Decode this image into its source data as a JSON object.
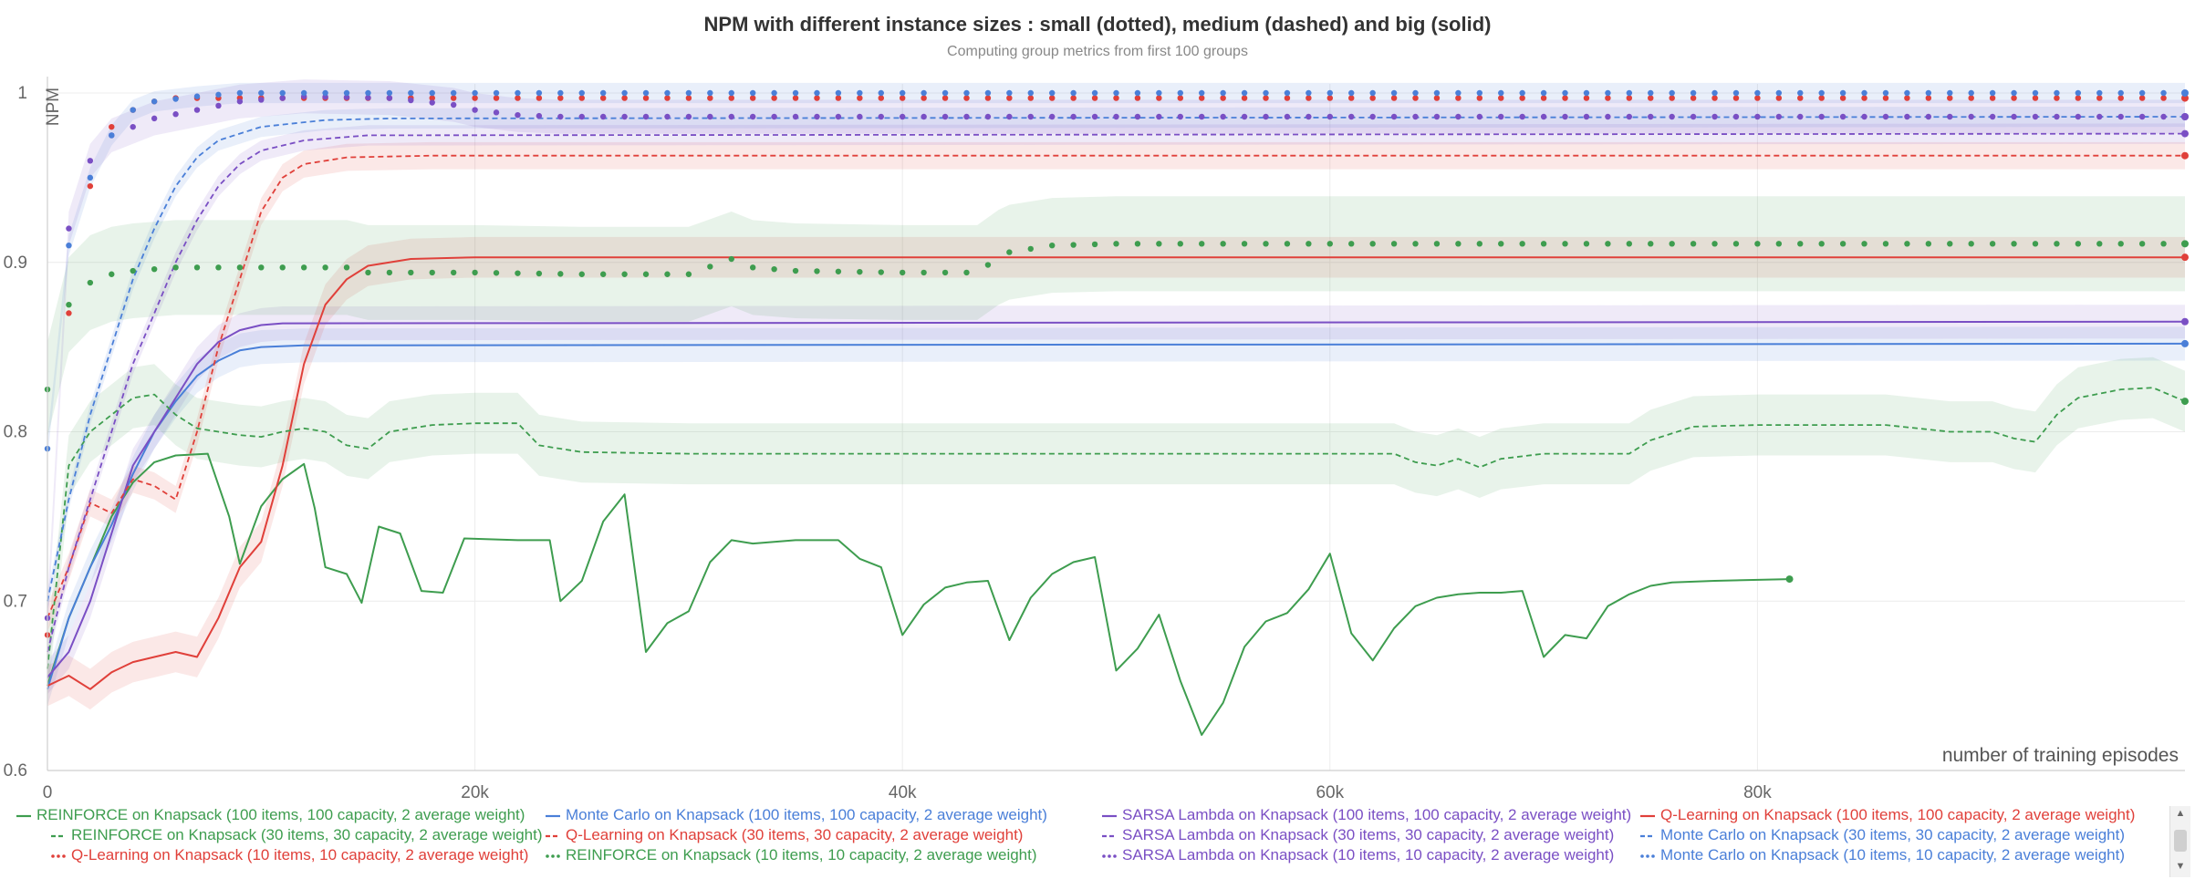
{
  "chart_data": {
    "type": "line",
    "title": "NPM with different instance sizes : small (dotted), medium (dashed) and big (solid)",
    "subtitle": "Computing group metrics from first 100 groups",
    "xlabel": "number of training episodes",
    "ylabel": "NPM",
    "xlim": [
      0,
      100000
    ],
    "ylim": [
      0.6,
      1.0
    ],
    "x_ticks": [
      0,
      20000,
      40000,
      60000,
      80000
    ],
    "x_tick_labels": [
      "0",
      "20k",
      "40k",
      "60k",
      "80k"
    ],
    "y_ticks": [
      0.6,
      0.7,
      0.8,
      0.9,
      1.0
    ],
    "y_tick_labels": [
      "0.6",
      "0.7",
      "0.8",
      "0.9",
      "1"
    ],
    "grid": true,
    "legend_position": "bottom",
    "colors": {
      "REINFORCE": "#3e9d4f",
      "Monte Carlo": "#4a7fd8",
      "SARSA Lambda": "#7a4fc4",
      "Q-Learning": "#e0403a"
    },
    "series": [
      {
        "name": "REINFORCE on Knapsack (100 items, 100 capacity, 2 average weight)",
        "algo": "REINFORCE",
        "style": "solid",
        "points": [
          [
            0,
            0.65
          ],
          [
            1000,
            0.69
          ],
          [
            2000,
            0.72
          ],
          [
            3000,
            0.75
          ],
          [
            4000,
            0.77
          ],
          [
            5000,
            0.782
          ],
          [
            6000,
            0.786
          ],
          [
            7500,
            0.787
          ],
          [
            8500,
            0.75
          ],
          [
            9000,
            0.722
          ],
          [
            10000,
            0.756
          ],
          [
            11000,
            0.772
          ],
          [
            12000,
            0.781
          ],
          [
            12500,
            0.755
          ],
          [
            13000,
            0.72
          ],
          [
            14000,
            0.716
          ],
          [
            14700,
            0.699
          ],
          [
            15500,
            0.744
          ],
          [
            16500,
            0.74
          ],
          [
            17500,
            0.706
          ],
          [
            18500,
            0.705
          ],
          [
            19500,
            0.737
          ],
          [
            22000,
            0.736
          ],
          [
            23500,
            0.736
          ],
          [
            24000,
            0.7
          ],
          [
            25000,
            0.712
          ],
          [
            26000,
            0.747
          ],
          [
            27000,
            0.763
          ],
          [
            28000,
            0.67
          ],
          [
            29000,
            0.687
          ],
          [
            30000,
            0.694
          ],
          [
            31000,
            0.723
          ],
          [
            32000,
            0.736
          ],
          [
            33000,
            0.734
          ],
          [
            35000,
            0.736
          ],
          [
            37000,
            0.736
          ],
          [
            38000,
            0.725
          ],
          [
            39000,
            0.72
          ],
          [
            40000,
            0.68
          ],
          [
            41000,
            0.698
          ],
          [
            42000,
            0.708
          ],
          [
            43000,
            0.711
          ],
          [
            44000,
            0.712
          ],
          [
            45000,
            0.677
          ],
          [
            46000,
            0.702
          ],
          [
            47000,
            0.716
          ],
          [
            48000,
            0.723
          ],
          [
            49000,
            0.726
          ],
          [
            50000,
            0.659
          ],
          [
            51000,
            0.672
          ],
          [
            52000,
            0.692
          ],
          [
            53000,
            0.653
          ],
          [
            54000,
            0.621
          ],
          [
            55000,
            0.64
          ],
          [
            56000,
            0.673
          ],
          [
            57000,
            0.688
          ],
          [
            58000,
            0.693
          ],
          [
            59000,
            0.707
          ],
          [
            60000,
            0.728
          ],
          [
            61000,
            0.681
          ],
          [
            62000,
            0.665
          ],
          [
            63000,
            0.684
          ],
          [
            64000,
            0.697
          ],
          [
            65000,
            0.702
          ],
          [
            66000,
            0.704
          ],
          [
            67000,
            0.705
          ],
          [
            68000,
            0.705
          ],
          [
            69000,
            0.706
          ],
          [
            70000,
            0.667
          ],
          [
            71000,
            0.68
          ],
          [
            72000,
            0.678
          ],
          [
            73000,
            0.697
          ],
          [
            74000,
            0.704
          ],
          [
            75000,
            0.709
          ],
          [
            76000,
            0.711
          ],
          [
            78000,
            0.712
          ],
          [
            81500,
            0.713
          ]
        ]
      },
      {
        "name": "Monte Carlo on Knapsack (100 items, 100 capacity, 2 average weight)",
        "algo": "Monte Carlo",
        "style": "solid",
        "band": 0.01,
        "points": [
          [
            0,
            0.648
          ],
          [
            1000,
            0.69
          ],
          [
            2000,
            0.72
          ],
          [
            3000,
            0.745
          ],
          [
            4000,
            0.775
          ],
          [
            5000,
            0.8
          ],
          [
            6000,
            0.818
          ],
          [
            7000,
            0.833
          ],
          [
            8000,
            0.842
          ],
          [
            9000,
            0.848
          ],
          [
            10000,
            0.85
          ],
          [
            12000,
            0.851
          ],
          [
            100000,
            0.852
          ]
        ]
      },
      {
        "name": "SARSA Lambda on Knapsack (100 items, 100 capacity, 2 average weight)",
        "algo": "SARSA Lambda",
        "style": "solid",
        "band": 0.01,
        "points": [
          [
            0,
            0.655
          ],
          [
            1000,
            0.67
          ],
          [
            2000,
            0.7
          ],
          [
            3000,
            0.74
          ],
          [
            4000,
            0.78
          ],
          [
            5000,
            0.8
          ],
          [
            6000,
            0.82
          ],
          [
            7000,
            0.84
          ],
          [
            8000,
            0.853
          ],
          [
            9000,
            0.86
          ],
          [
            10000,
            0.863
          ],
          [
            11000,
            0.864
          ],
          [
            100000,
            0.865
          ]
        ]
      },
      {
        "name": "Q-Learning on Knapsack (100 items, 100 capacity, 2 average weight)",
        "algo": "Q-Learning",
        "style": "solid",
        "band": 0.012,
        "points": [
          [
            0,
            0.65
          ],
          [
            1000,
            0.656
          ],
          [
            2000,
            0.648
          ],
          [
            3000,
            0.658
          ],
          [
            4000,
            0.664
          ],
          [
            5000,
            0.667
          ],
          [
            6000,
            0.67
          ],
          [
            7000,
            0.667
          ],
          [
            8000,
            0.69
          ],
          [
            9000,
            0.72
          ],
          [
            10000,
            0.735
          ],
          [
            11000,
            0.78
          ],
          [
            12000,
            0.84
          ],
          [
            13000,
            0.875
          ],
          [
            14000,
            0.89
          ],
          [
            15000,
            0.898
          ],
          [
            17000,
            0.902
          ],
          [
            20000,
            0.903
          ],
          [
            100000,
            0.903
          ]
        ]
      },
      {
        "name": "REINFORCE on Knapsack (30 items, 30 capacity, 2 average weight)",
        "algo": "REINFORCE",
        "style": "dashed",
        "band": 0.018,
        "points": [
          [
            0,
            0.66
          ],
          [
            1000,
            0.78
          ],
          [
            2000,
            0.8
          ],
          [
            3000,
            0.81
          ],
          [
            4000,
            0.82
          ],
          [
            5000,
            0.822
          ],
          [
            6000,
            0.81
          ],
          [
            7000,
            0.802
          ],
          [
            8000,
            0.8
          ],
          [
            9000,
            0.798
          ],
          [
            10000,
            0.797
          ],
          [
            11000,
            0.8
          ],
          [
            12000,
            0.802
          ],
          [
            13000,
            0.8
          ],
          [
            14000,
            0.792
          ],
          [
            15000,
            0.79
          ],
          [
            16000,
            0.8
          ],
          [
            18000,
            0.804
          ],
          [
            20000,
            0.805
          ],
          [
            22000,
            0.805
          ],
          [
            23000,
            0.792
          ],
          [
            25000,
            0.788
          ],
          [
            30000,
            0.787
          ],
          [
            40000,
            0.787
          ],
          [
            50000,
            0.787
          ],
          [
            60000,
            0.787
          ],
          [
            63000,
            0.787
          ],
          [
            64000,
            0.782
          ],
          [
            65000,
            0.78
          ],
          [
            66000,
            0.784
          ],
          [
            67000,
            0.779
          ],
          [
            68000,
            0.784
          ],
          [
            70000,
            0.787
          ],
          [
            72000,
            0.787
          ],
          [
            74000,
            0.787
          ],
          [
            75000,
            0.795
          ],
          [
            77000,
            0.803
          ],
          [
            80000,
            0.804
          ],
          [
            86000,
            0.804
          ],
          [
            89000,
            0.8
          ],
          [
            91000,
            0.8
          ],
          [
            92000,
            0.796
          ],
          [
            93000,
            0.794
          ],
          [
            94000,
            0.81
          ],
          [
            95000,
            0.82
          ],
          [
            97000,
            0.825
          ],
          [
            98500,
            0.826
          ],
          [
            100000,
            0.818
          ]
        ]
      },
      {
        "name": "Q-Learning on Knapsack (30 items, 30 capacity, 2 average weight)",
        "algo": "Q-Learning",
        "style": "dashed",
        "band": 0.008,
        "points": [
          [
            0,
            0.69
          ],
          [
            1000,
            0.72
          ],
          [
            2000,
            0.758
          ],
          [
            3000,
            0.752
          ],
          [
            4000,
            0.772
          ],
          [
            5000,
            0.768
          ],
          [
            6000,
            0.76
          ],
          [
            7000,
            0.8
          ],
          [
            8000,
            0.85
          ],
          [
            9000,
            0.89
          ],
          [
            10000,
            0.93
          ],
          [
            11000,
            0.95
          ],
          [
            12000,
            0.958
          ],
          [
            14000,
            0.962
          ],
          [
            18000,
            0.963
          ],
          [
            100000,
            0.963
          ]
        ]
      },
      {
        "name": "SARSA Lambda on Knapsack (30 items, 30 capacity, 2 average weight)",
        "algo": "SARSA Lambda",
        "style": "dashed",
        "band": 0.006,
        "points": [
          [
            0,
            0.67
          ],
          [
            1000,
            0.72
          ],
          [
            2000,
            0.76
          ],
          [
            3000,
            0.8
          ],
          [
            4000,
            0.84
          ],
          [
            5000,
            0.87
          ],
          [
            6000,
            0.9
          ],
          [
            7000,
            0.925
          ],
          [
            8000,
            0.945
          ],
          [
            9000,
            0.958
          ],
          [
            10000,
            0.966
          ],
          [
            12000,
            0.972
          ],
          [
            15000,
            0.975
          ],
          [
            100000,
            0.976
          ]
        ]
      },
      {
        "name": "Monte Carlo on Knapsack (30 items, 30 capacity, 2 average weight)",
        "algo": "Monte Carlo",
        "style": "dashed",
        "band": 0.006,
        "points": [
          [
            0,
            0.7
          ],
          [
            1000,
            0.76
          ],
          [
            2000,
            0.81
          ],
          [
            3000,
            0.85
          ],
          [
            4000,
            0.89
          ],
          [
            5000,
            0.92
          ],
          [
            6000,
            0.945
          ],
          [
            7000,
            0.962
          ],
          [
            8000,
            0.972
          ],
          [
            10000,
            0.98
          ],
          [
            13000,
            0.984
          ],
          [
            16000,
            0.985
          ],
          [
            100000,
            0.986
          ]
        ]
      },
      {
        "name": "Q-Learning on Knapsack (10 items, 10 capacity, 2 average weight)",
        "algo": "Q-Learning",
        "style": "dotted",
        "points": [
          [
            0,
            0.68
          ],
          [
            1000,
            0.87
          ],
          [
            2000,
            0.945
          ],
          [
            3000,
            0.98
          ],
          [
            4000,
            0.99
          ],
          [
            5000,
            0.995
          ],
          [
            6000,
            0.997
          ],
          [
            100000,
            0.997
          ]
        ]
      },
      {
        "name": "REINFORCE on Knapsack (10 items, 10 capacity, 2 average weight)",
        "algo": "REINFORCE",
        "style": "dotted",
        "band": 0.028,
        "points": [
          [
            0,
            0.825
          ],
          [
            1000,
            0.875
          ],
          [
            2000,
            0.888
          ],
          [
            3000,
            0.893
          ],
          [
            4000,
            0.895
          ],
          [
            6000,
            0.897
          ],
          [
            10000,
            0.897
          ],
          [
            14000,
            0.897
          ],
          [
            15000,
            0.894
          ],
          [
            20000,
            0.894
          ],
          [
            25000,
            0.893
          ],
          [
            30000,
            0.893
          ],
          [
            32000,
            0.902
          ],
          [
            33000,
            0.897
          ],
          [
            35000,
            0.895
          ],
          [
            40000,
            0.894
          ],
          [
            43500,
            0.894
          ],
          [
            44500,
            0.903
          ],
          [
            45000,
            0.906
          ],
          [
            47000,
            0.91
          ],
          [
            50000,
            0.911
          ],
          [
            60000,
            0.911
          ],
          [
            70000,
            0.911
          ],
          [
            80000,
            0.911
          ],
          [
            100000,
            0.911
          ]
        ]
      },
      {
        "name": "SARSA Lambda on Knapsack (10 items, 10 capacity, 2 average weight)",
        "algo": "SARSA Lambda",
        "style": "dotted",
        "band": 0.01,
        "points": [
          [
            0,
            0.69
          ],
          [
            1000,
            0.92
          ],
          [
            2000,
            0.96
          ],
          [
            3000,
            0.975
          ],
          [
            5000,
            0.985
          ],
          [
            7000,
            0.99
          ],
          [
            9000,
            0.995
          ],
          [
            12000,
            0.998
          ],
          [
            16000,
            0.997
          ],
          [
            19000,
            0.993
          ],
          [
            20000,
            0.99
          ],
          [
            22000,
            0.987
          ],
          [
            24000,
            0.986
          ],
          [
            100000,
            0.986
          ]
        ]
      },
      {
        "name": "Monte Carlo on Knapsack (10 items, 10 capacity, 2 average weight)",
        "algo": "Monte Carlo",
        "style": "dotted",
        "band": 0.006,
        "points": [
          [
            0,
            0.79
          ],
          [
            1000,
            0.91
          ],
          [
            2000,
            0.95
          ],
          [
            3000,
            0.975
          ],
          [
            4000,
            0.99
          ],
          [
            5000,
            0.995
          ],
          [
            7000,
            0.998
          ],
          [
            9000,
            1.0
          ],
          [
            100000,
            1.0
          ]
        ]
      }
    ]
  }
}
